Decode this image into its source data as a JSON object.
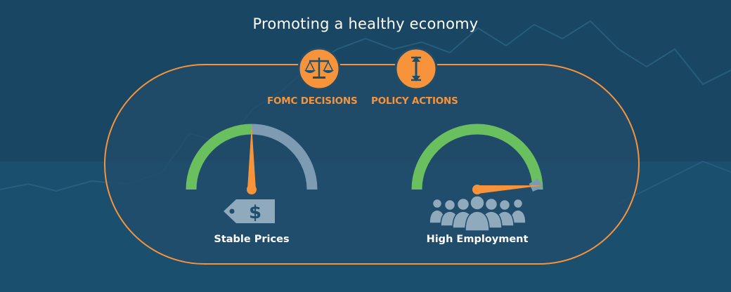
{
  "title": "Promoting a healthy economy",
  "actions": [
    {
      "label": "FOMC DECISIONS",
      "icon": "scales-icon"
    },
    {
      "label": "POLICY ACTIONS",
      "icon": "vertical-arrows-icon"
    }
  ],
  "goals": [
    {
      "label": "Stable Prices",
      "icon": "price-tag-icon",
      "tag_symbol": "$",
      "gauge_fraction": 0.5
    },
    {
      "label": "High Employment",
      "icon": "crowd-icon",
      "gauge_fraction": 0.98
    }
  ],
  "colors": {
    "background": "#1b4f6e",
    "accent": "#f7943b",
    "gauge_green": "#6abf5e",
    "gauge_gray": "#7d9bb2",
    "icon_gray": "#8fa9bd"
  }
}
